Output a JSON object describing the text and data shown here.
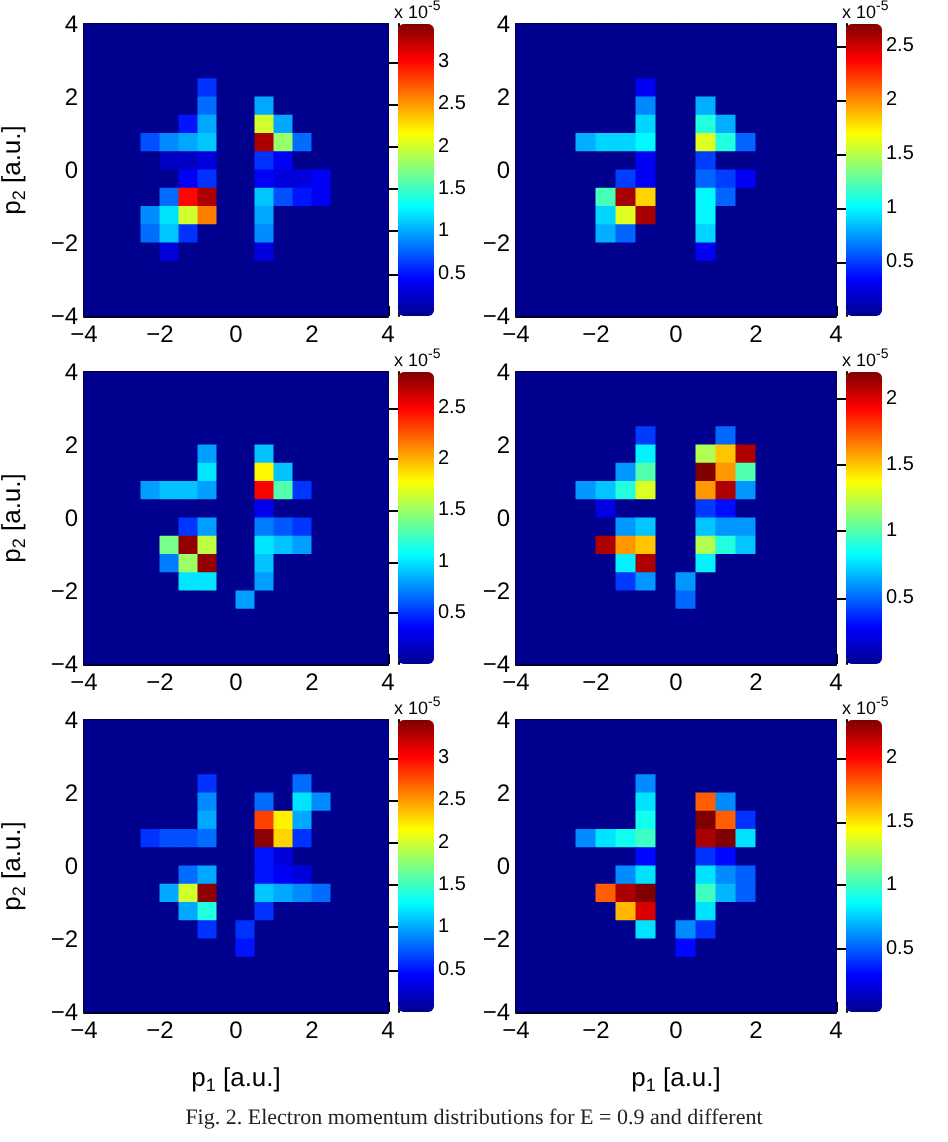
{
  "chart_data": [
    {
      "type": "heatmap",
      "ylabel": "p$_{2}$ [a.u.]",
      "clabel": "x 10$^{-5}$",
      "xlim": [
        -4,
        4
      ],
      "ylim": [
        -4,
        4
      ],
      "xticks": [
        -4,
        -2,
        0,
        2,
        4
      ],
      "yticks": [
        -4,
        -2,
        0,
        2,
        4
      ],
      "clim": [
        0,
        3.45
      ],
      "cticks": [
        0.5,
        1,
        1.5,
        2,
        2.5,
        3
      ],
      "colors": [
        "#00008f",
        "#0000ff",
        "#0080ff",
        "#00ffff",
        "#80ff80",
        "#ffff00",
        "#ff8000",
        "#ff0000",
        "#800000"
      ],
      "cells": [
        [
          0,
          0,
          0,
          0,
          0,
          0,
          0,
          0,
          0,
          0,
          0,
          0,
          0,
          0,
          0,
          0
        ],
        [
          0,
          0,
          0,
          0,
          0,
          0,
          0,
          0,
          0,
          0,
          0,
          0,
          0,
          0,
          0,
          0
        ],
        [
          0,
          0,
          0,
          0,
          0,
          0,
          0,
          0,
          0,
          0,
          0,
          0,
          0,
          0,
          0,
          0
        ],
        [
          0,
          0,
          0,
          0,
          0,
          0,
          0.6,
          0,
          0,
          0,
          0,
          0,
          0,
          0,
          0,
          0
        ],
        [
          0,
          0,
          0,
          0,
          0,
          0,
          0.8,
          0,
          0,
          1.0,
          0,
          0,
          0,
          0,
          0,
          0
        ],
        [
          0,
          0,
          0,
          0,
          0,
          0.5,
          1.0,
          0,
          0,
          2.0,
          1.0,
          0,
          0,
          0,
          0,
          0
        ],
        [
          0,
          0,
          0,
          0.7,
          0.9,
          1.0,
          1.1,
          0,
          0,
          3.3,
          1.8,
          0.8,
          0,
          0,
          0,
          0
        ],
        [
          0,
          0,
          0,
          0,
          0.2,
          0.2,
          0.3,
          0,
          0,
          0.6,
          0.4,
          0,
          0,
          0,
          0,
          0
        ],
        [
          0,
          0,
          0,
          0,
          0,
          0.4,
          0.6,
          0,
          0,
          0.4,
          0.3,
          0.3,
          0.4,
          0,
          0,
          0
        ],
        [
          0,
          0,
          0,
          0,
          0.8,
          3.0,
          3.3,
          0,
          0,
          1.1,
          0.7,
          0.5,
          0.4,
          0,
          0,
          0
        ],
        [
          0,
          0,
          0,
          0.9,
          1.2,
          2.0,
          2.6,
          0,
          0,
          1.0,
          0,
          0,
          0,
          0,
          0,
          0
        ],
        [
          0,
          0,
          0,
          0.8,
          1.1,
          0.6,
          0,
          0,
          0,
          0.9,
          0,
          0,
          0,
          0,
          0,
          0
        ],
        [
          0,
          0,
          0,
          0,
          0.3,
          0,
          0,
          0,
          0,
          0.3,
          0,
          0,
          0,
          0,
          0,
          0
        ],
        [
          0,
          0,
          0,
          0,
          0,
          0,
          0,
          0,
          0,
          0,
          0,
          0,
          0,
          0,
          0,
          0
        ],
        [
          0,
          0,
          0,
          0,
          0,
          0,
          0,
          0,
          0,
          0,
          0,
          0,
          0,
          0,
          0,
          0
        ],
        [
          0,
          0,
          0,
          0,
          0,
          0,
          0,
          0,
          0,
          0,
          0,
          0,
          0,
          0,
          0,
          0
        ]
      ]
    },
    {
      "type": "heatmap",
      "clabel": "x 10$^{-5}$",
      "xlim": [
        -4,
        4
      ],
      "ylim": [
        -4,
        4
      ],
      "xticks": [
        -4,
        -2,
        0,
        2,
        4
      ],
      "yticks": [
        -4,
        -2,
        0,
        2,
        4
      ],
      "clim": [
        0,
        2.7
      ],
      "cticks": [
        0.5,
        1,
        1.5,
        2,
        2.5
      ],
      "colors": [
        "#00008f",
        "#0000ff",
        "#0080ff",
        "#00ffff",
        "#80ff80",
        "#ffff00",
        "#ff8000",
        "#ff0000",
        "#800000"
      ],
      "cells": [
        [
          0,
          0,
          0,
          0,
          0,
          0,
          0,
          0,
          0,
          0,
          0,
          0,
          0,
          0,
          0,
          0
        ],
        [
          0,
          0,
          0,
          0,
          0,
          0,
          0,
          0,
          0,
          0,
          0,
          0,
          0,
          0,
          0,
          0
        ],
        [
          0,
          0,
          0,
          0,
          0,
          0,
          0,
          0,
          0,
          0,
          0,
          0,
          0,
          0,
          0,
          0
        ],
        [
          0,
          0,
          0,
          0,
          0,
          0,
          0.3,
          0,
          0,
          0,
          0,
          0,
          0,
          0,
          0,
          0
        ],
        [
          0,
          0,
          0,
          0,
          0,
          0,
          0.7,
          0,
          0,
          0.8,
          0,
          0,
          0,
          0,
          0,
          0
        ],
        [
          0,
          0,
          0,
          0,
          0,
          0,
          0.9,
          0,
          0,
          1.1,
          0.8,
          0,
          0,
          0,
          0,
          0
        ],
        [
          0,
          0,
          0,
          0.8,
          0.9,
          0.9,
          1.0,
          0,
          0,
          1.6,
          1.1,
          0.6,
          0,
          0,
          0,
          0
        ],
        [
          0,
          0,
          0,
          0,
          0,
          0,
          0.3,
          0,
          0,
          0.5,
          0,
          0,
          0,
          0,
          0,
          0
        ],
        [
          0,
          0,
          0,
          0,
          0,
          0.5,
          0.3,
          0,
          0,
          0.6,
          0.5,
          0.3,
          0,
          0,
          0,
          0
        ],
        [
          0,
          0,
          0,
          0,
          1.2,
          2.6,
          1.8,
          0,
          0,
          1.0,
          0.6,
          0,
          0,
          0,
          0,
          0
        ],
        [
          0,
          0,
          0,
          0,
          0.9,
          1.6,
          2.6,
          0,
          0,
          1.0,
          0,
          0,
          0,
          0,
          0,
          0
        ],
        [
          0,
          0,
          0,
          0,
          0.8,
          0.6,
          0,
          0,
          0,
          0.9,
          0,
          0,
          0,
          0,
          0,
          0
        ],
        [
          0,
          0,
          0,
          0,
          0,
          0,
          0,
          0,
          0,
          0.3,
          0,
          0,
          0,
          0,
          0,
          0
        ],
        [
          0,
          0,
          0,
          0,
          0,
          0,
          0,
          0,
          0,
          0,
          0,
          0,
          0,
          0,
          0,
          0
        ],
        [
          0,
          0,
          0,
          0,
          0,
          0,
          0,
          0,
          0,
          0,
          0,
          0,
          0,
          0,
          0,
          0
        ],
        [
          0,
          0,
          0,
          0,
          0,
          0,
          0,
          0,
          0,
          0,
          0,
          0,
          0,
          0,
          0,
          0
        ]
      ]
    },
    {
      "type": "heatmap",
      "ylabel": "p$_{2}$ [a.u.]",
      "clabel": "x 10$^{-5}$",
      "xlim": [
        -4,
        4
      ],
      "ylim": [
        -4,
        4
      ],
      "xticks": [
        -4,
        -2,
        0,
        2,
        4
      ],
      "yticks": [
        -4,
        -2,
        0,
        2,
        4
      ],
      "clim": [
        0,
        2.85
      ],
      "cticks": [
        0.5,
        1,
        1.5,
        2,
        2.5
      ],
      "colors": [
        "#00008f",
        "#0000ff",
        "#0080ff",
        "#00ffff",
        "#80ff80",
        "#ffff00",
        "#ff8000",
        "#ff0000",
        "#800000"
      ],
      "cells": [
        [
          0,
          0,
          0,
          0,
          0,
          0,
          0,
          0,
          0,
          0,
          0,
          0,
          0,
          0,
          0,
          0
        ],
        [
          0,
          0,
          0,
          0,
          0,
          0,
          0,
          0,
          0,
          0,
          0,
          0,
          0,
          0,
          0,
          0
        ],
        [
          0,
          0,
          0,
          0,
          0,
          0,
          0,
          0,
          0,
          0,
          0,
          0,
          0,
          0,
          0,
          0
        ],
        [
          0,
          0,
          0,
          0,
          0,
          0,
          0,
          0,
          0,
          0,
          0,
          0,
          0,
          0,
          0,
          0
        ],
        [
          0,
          0,
          0,
          0,
          0,
          0,
          0.8,
          0,
          0,
          0.9,
          0,
          0,
          0,
          0,
          0,
          0
        ],
        [
          0,
          0,
          0,
          0,
          0,
          0,
          1.0,
          0,
          0,
          1.8,
          0.9,
          0,
          0,
          0,
          0,
          0
        ],
        [
          0,
          0,
          0,
          0.8,
          0.9,
          0.9,
          0.8,
          0,
          0,
          2.5,
          1.3,
          0.5,
          0,
          0,
          0,
          0
        ],
        [
          0,
          0,
          0,
          0,
          0,
          0,
          0,
          0,
          0,
          0.3,
          0,
          0,
          0,
          0,
          0,
          0
        ],
        [
          0,
          0,
          0,
          0,
          0,
          0.5,
          0.8,
          0,
          0,
          0.7,
          0.6,
          0.5,
          0,
          0,
          0,
          0
        ],
        [
          0,
          0,
          0,
          0,
          1.4,
          2.8,
          1.6,
          0,
          0,
          1.0,
          0.9,
          0.8,
          0,
          0,
          0,
          0
        ],
        [
          0,
          0,
          0,
          0,
          0.7,
          1.5,
          2.8,
          0,
          0,
          0.9,
          0,
          0,
          0,
          0,
          0,
          0
        ],
        [
          0,
          0,
          0,
          0,
          0,
          1.0,
          1.0,
          0,
          0,
          0.8,
          0,
          0,
          0,
          0,
          0,
          0
        ],
        [
          0,
          0,
          0,
          0,
          0,
          0,
          0,
          0,
          0.8,
          0,
          0,
          0,
          0,
          0,
          0,
          0
        ],
        [
          0,
          0,
          0,
          0,
          0,
          0,
          0,
          0,
          0,
          0,
          0,
          0,
          0,
          0,
          0,
          0
        ],
        [
          0,
          0,
          0,
          0,
          0,
          0,
          0,
          0,
          0,
          0,
          0,
          0,
          0,
          0,
          0,
          0
        ],
        [
          0,
          0,
          0,
          0,
          0,
          0,
          0,
          0,
          0,
          0,
          0,
          0,
          0,
          0,
          0,
          0
        ]
      ]
    },
    {
      "type": "heatmap",
      "clabel": "x 10$^{-5}$",
      "xlim": [
        -4,
        4
      ],
      "ylim": [
        -4,
        4
      ],
      "xticks": [
        -4,
        -2,
        0,
        2,
        4
      ],
      "yticks": [
        -4,
        -2,
        0,
        2,
        4
      ],
      "clim": [
        0,
        2.2
      ],
      "cticks": [
        0.5,
        1,
        1.5,
        2
      ],
      "colors": [
        "#00008f",
        "#0000ff",
        "#0080ff",
        "#00ffff",
        "#80ff80",
        "#ffff00",
        "#ff8000",
        "#ff0000",
        "#800000"
      ],
      "cells": [
        [
          0,
          0,
          0,
          0,
          0,
          0,
          0,
          0,
          0,
          0,
          0,
          0,
          0,
          0,
          0,
          0
        ],
        [
          0,
          0,
          0,
          0,
          0,
          0,
          0,
          0,
          0,
          0,
          0,
          0,
          0,
          0,
          0,
          0
        ],
        [
          0,
          0,
          0,
          0,
          0,
          0,
          0,
          0,
          0,
          0,
          0,
          0,
          0,
          0,
          0,
          0
        ],
        [
          0,
          0,
          0,
          0,
          0,
          0,
          0.4,
          0,
          0,
          0,
          0.5,
          0,
          0,
          0,
          0,
          0
        ],
        [
          0,
          0,
          0,
          0,
          0,
          0,
          0.8,
          0,
          0,
          1.2,
          1.5,
          2.1,
          0,
          0,
          0,
          0
        ],
        [
          0,
          0,
          0,
          0,
          0,
          0.6,
          1.0,
          0,
          0,
          2.2,
          1.6,
          1.0,
          0,
          0,
          0,
          0
        ],
        [
          0,
          0,
          0,
          0.6,
          0.7,
          0.9,
          1.3,
          0,
          0,
          1.6,
          2.1,
          0.6,
          0,
          0,
          0,
          0
        ],
        [
          0,
          0,
          0,
          0,
          0.2,
          0,
          0,
          0,
          0,
          0.4,
          0.3,
          0,
          0,
          0,
          0,
          0
        ],
        [
          0,
          0,
          0,
          0,
          0,
          0.6,
          0.7,
          0,
          0,
          0.7,
          0.6,
          0.6,
          0,
          0,
          0,
          0
        ],
        [
          0,
          0,
          0,
          0,
          2.1,
          1.6,
          1.5,
          0,
          0,
          1.2,
          0.9,
          0.7,
          0,
          0,
          0,
          0
        ],
        [
          0,
          0,
          0,
          0,
          0,
          0.8,
          2.1,
          0,
          0,
          0.8,
          0,
          0,
          0,
          0,
          0,
          0
        ],
        [
          0,
          0,
          0,
          0,
          0,
          0.4,
          0.6,
          0,
          0.6,
          0,
          0,
          0,
          0,
          0,
          0,
          0
        ],
        [
          0,
          0,
          0,
          0,
          0,
          0,
          0,
          0,
          0.5,
          0,
          0,
          0,
          0,
          0,
          0,
          0
        ],
        [
          0,
          0,
          0,
          0,
          0,
          0,
          0,
          0,
          0,
          0,
          0,
          0,
          0,
          0,
          0,
          0
        ],
        [
          0,
          0,
          0,
          0,
          0,
          0,
          0,
          0,
          0,
          0,
          0,
          0,
          0,
          0,
          0,
          0
        ],
        [
          0,
          0,
          0,
          0,
          0,
          0,
          0,
          0,
          0,
          0,
          0,
          0,
          0,
          0,
          0,
          0
        ]
      ]
    },
    {
      "type": "heatmap",
      "xlabel": "p$_{1}$ [a.u.]",
      "ylabel": "p$_{2}$ [a.u.]",
      "clabel": "x 10$^{-5}$",
      "xlim": [
        -4,
        4
      ],
      "ylim": [
        -4,
        4
      ],
      "xticks": [
        -4,
        -2,
        0,
        2,
        4
      ],
      "yticks": [
        -4,
        -2,
        0,
        2,
        4
      ],
      "clim": [
        0,
        3.45
      ],
      "cticks": [
        0.5,
        1,
        1.5,
        2,
        2.5,
        3
      ],
      "colors": [
        "#00008f",
        "#0000ff",
        "#0080ff",
        "#00ffff",
        "#80ff80",
        "#ffff00",
        "#ff8000",
        "#ff0000",
        "#800000"
      ],
      "cells": [
        [
          0,
          0,
          0,
          0,
          0,
          0,
          0,
          0,
          0,
          0,
          0,
          0,
          0,
          0,
          0,
          0
        ],
        [
          0,
          0,
          0,
          0,
          0,
          0,
          0,
          0,
          0,
          0,
          0,
          0,
          0,
          0,
          0,
          0
        ],
        [
          0,
          0,
          0,
          0,
          0,
          0,
          0,
          0,
          0,
          0,
          0,
          0,
          0,
          0,
          0,
          0
        ],
        [
          0,
          0,
          0,
          0,
          0,
          0,
          0.6,
          0,
          0,
          0,
          0,
          0.8,
          0,
          0,
          0,
          0
        ],
        [
          0,
          0,
          0,
          0,
          0,
          0,
          0.9,
          0,
          0,
          0.8,
          0,
          1.2,
          0.9,
          0,
          0,
          0
        ],
        [
          0,
          0,
          0,
          0,
          0,
          0,
          1.0,
          0,
          0,
          2.8,
          2.2,
          1.0,
          0,
          0,
          0,
          0
        ],
        [
          0,
          0,
          0,
          0.6,
          0.7,
          0.7,
          0.8,
          0,
          0,
          3.4,
          2.3,
          0.6,
          0,
          0,
          0,
          0
        ],
        [
          0,
          0,
          0,
          0,
          0,
          0,
          0,
          0,
          0,
          0.5,
          0.3,
          0,
          0,
          0,
          0,
          0
        ],
        [
          0,
          0,
          0,
          0,
          0,
          0.8,
          1.0,
          0,
          0,
          0.5,
          0.4,
          0.3,
          0,
          0,
          0,
          0
        ],
        [
          0,
          0,
          0,
          0,
          1.0,
          2.0,
          3.4,
          0,
          0,
          1.1,
          1.0,
          0.9,
          0.8,
          0,
          0,
          0
        ],
        [
          0,
          0,
          0,
          0,
          0,
          1.0,
          1.4,
          0,
          0,
          0.6,
          0,
          0,
          0,
          0,
          0,
          0
        ],
        [
          0,
          0,
          0,
          0,
          0,
          0,
          0.6,
          0,
          0.6,
          0,
          0,
          0,
          0,
          0,
          0,
          0
        ],
        [
          0,
          0,
          0,
          0,
          0,
          0,
          0,
          0,
          0.5,
          0,
          0,
          0,
          0,
          0,
          0,
          0
        ],
        [
          0,
          0,
          0,
          0,
          0,
          0,
          0,
          0,
          0,
          0,
          0,
          0,
          0,
          0,
          0,
          0
        ],
        [
          0,
          0,
          0,
          0,
          0,
          0,
          0,
          0,
          0,
          0,
          0,
          0,
          0,
          0,
          0,
          0
        ],
        [
          0,
          0,
          0,
          0,
          0,
          0,
          0,
          0,
          0,
          0,
          0,
          0,
          0,
          0,
          0,
          0
        ]
      ]
    },
    {
      "type": "heatmap",
      "xlabel": "p$_{1}$ [a.u.]",
      "clabel": "x 10$^{-5}$",
      "xlim": [
        -4,
        4
      ],
      "ylim": [
        -4,
        4
      ],
      "xticks": [
        -4,
        -2,
        0,
        2,
        4
      ],
      "yticks": [
        -4,
        -2,
        0,
        2,
        4
      ],
      "clim": [
        0,
        2.3
      ],
      "cticks": [
        0.5,
        1,
        1.5,
        2
      ],
      "colors": [
        "#00008f",
        "#0000ff",
        "#0080ff",
        "#00ffff",
        "#80ff80",
        "#ffff00",
        "#ff8000",
        "#ff0000",
        "#800000"
      ],
      "annotations": [
        "Fig. 2. Electron momentum distributions for E = 0.9 and different"
      ],
      "cells": [
        [
          0,
          0,
          0,
          0,
          0,
          0,
          0,
          0,
          0,
          0,
          0,
          0,
          0,
          0,
          0,
          0
        ],
        [
          0,
          0,
          0,
          0,
          0,
          0,
          0,
          0,
          0,
          0,
          0,
          0,
          0,
          0,
          0,
          0
        ],
        [
          0,
          0,
          0,
          0,
          0,
          0,
          0,
          0,
          0,
          0,
          0,
          0,
          0,
          0,
          0,
          0
        ],
        [
          0,
          0,
          0,
          0,
          0,
          0,
          0.6,
          0,
          0,
          0,
          0,
          0,
          0,
          0,
          0,
          0
        ],
        [
          0,
          0,
          0,
          0,
          0,
          0,
          0.8,
          0,
          0,
          1.8,
          0.6,
          0,
          0,
          0,
          0,
          0
        ],
        [
          0,
          0,
          0,
          0,
          0,
          0,
          0.9,
          0,
          0,
          2.3,
          1.8,
          0.4,
          0,
          0,
          0,
          0
        ],
        [
          0,
          0,
          0,
          0.6,
          0.8,
          0.9,
          1.0,
          0,
          0,
          2.2,
          2.3,
          0.8,
          0,
          0,
          0,
          0
        ],
        [
          0,
          0,
          0,
          0,
          0,
          0,
          0.3,
          0,
          0,
          0.4,
          0.3,
          0,
          0,
          0,
          0,
          0
        ],
        [
          0,
          0,
          0,
          0,
          0,
          0.6,
          0.8,
          0,
          0,
          0.8,
          0.6,
          0.5,
          0,
          0,
          0,
          0
        ],
        [
          0,
          0,
          0,
          0,
          1.8,
          2.2,
          2.3,
          0,
          0,
          1.0,
          0.7,
          0.5,
          0,
          0,
          0,
          0
        ],
        [
          0,
          0,
          0,
          0,
          0,
          1.6,
          2.1,
          0,
          0,
          0.8,
          0,
          0,
          0,
          0,
          0,
          0
        ],
        [
          0,
          0,
          0,
          0,
          0,
          0,
          0.8,
          0,
          0.6,
          0.4,
          0,
          0,
          0,
          0,
          0,
          0
        ],
        [
          0,
          0,
          0,
          0,
          0,
          0,
          0,
          0,
          0.3,
          0,
          0,
          0,
          0,
          0,
          0,
          0
        ],
        [
          0,
          0,
          0,
          0,
          0,
          0,
          0,
          0,
          0,
          0,
          0,
          0,
          0,
          0,
          0,
          0
        ],
        [
          0,
          0,
          0,
          0,
          0,
          0,
          0,
          0,
          0,
          0,
          0,
          0,
          0,
          0,
          0,
          0
        ],
        [
          0,
          0,
          0,
          0,
          0,
          0,
          0,
          0,
          0,
          0,
          0,
          0,
          0,
          0,
          0,
          0
        ]
      ]
    }
  ]
}
